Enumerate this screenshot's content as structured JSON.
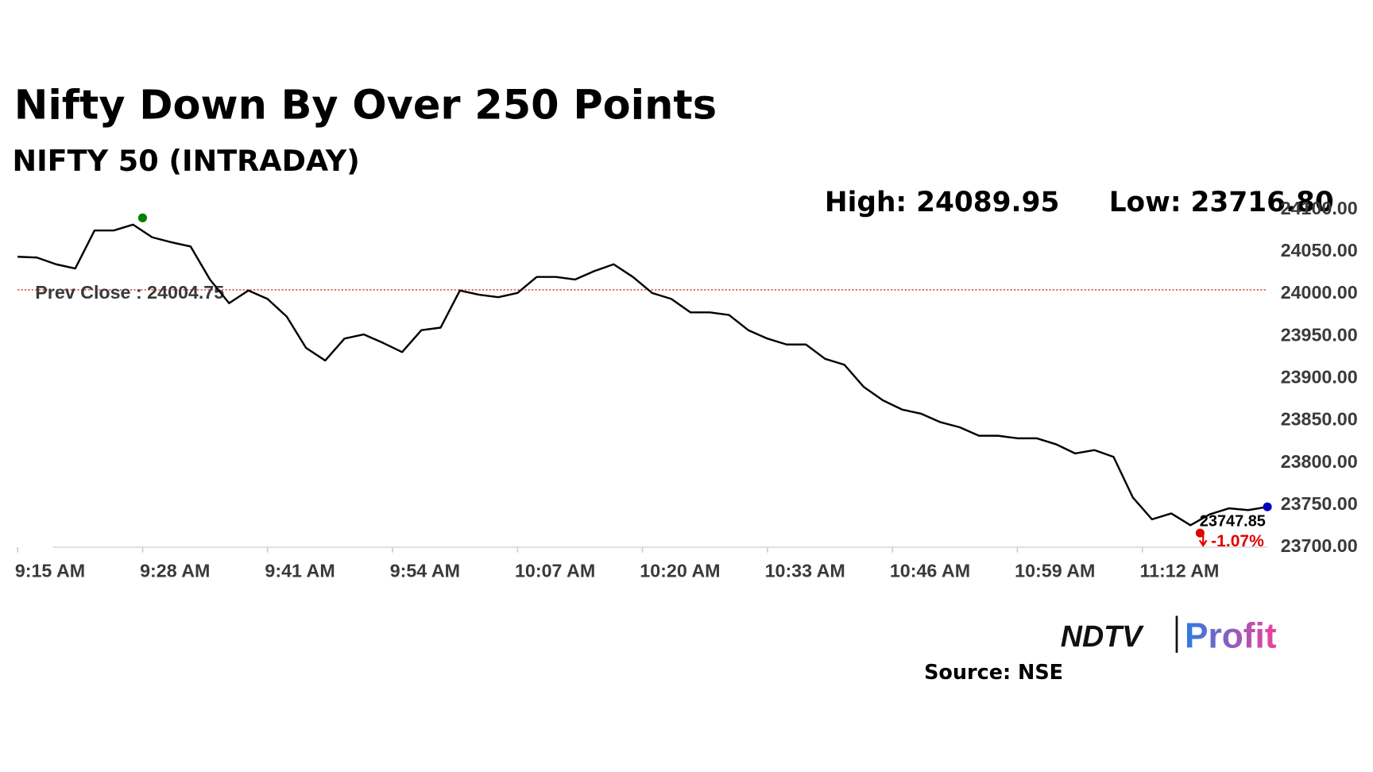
{
  "chart_data": {
    "type": "line",
    "title": "Nifty Down By Over 250 Points",
    "subtitle": "NIFTY 50 (INTRADAY)",
    "x": [
      "9:15 AM",
      "9:17 AM",
      "9:19 AM",
      "9:21 AM",
      "9:23 AM",
      "9:25 AM",
      "9:27 AM",
      "9:29 AM",
      "9:31 AM",
      "9:33 AM",
      "9:35 AM",
      "9:37 AM",
      "9:39 AM",
      "9:41 AM",
      "9:43 AM",
      "9:45 AM",
      "9:47 AM",
      "9:49 AM",
      "9:51 AM",
      "9:53 AM",
      "9:55 AM",
      "9:57 AM",
      "9:59 AM",
      "10:01 AM",
      "10:03 AM",
      "10:05 AM",
      "10:07 AM",
      "10:09 AM",
      "10:11 AM",
      "10:13 AM",
      "10:15 AM",
      "10:17 AM",
      "10:19 AM",
      "10:21 AM",
      "10:23 AM",
      "10:25 AM",
      "10:27 AM",
      "10:29 AM",
      "10:31 AM",
      "10:33 AM",
      "10:35 AM",
      "10:37 AM",
      "10:39 AM",
      "10:41 AM",
      "10:43 AM",
      "10:45 AM",
      "10:47 AM",
      "10:49 AM",
      "10:51 AM",
      "10:53 AM",
      "10:55 AM",
      "10:57 AM",
      "10:59 AM",
      "11:01 AM",
      "11:03 AM",
      "11:05 AM",
      "11:07 AM",
      "11:09 AM",
      "11:11 AM",
      "11:13 AM",
      "11:15 AM",
      "11:17 AM",
      "11:19 AM",
      "11:21 AM",
      "11:23 AM",
      "11:25 AM"
    ],
    "values": [
      24044,
      24043,
      24035,
      24030,
      24075,
      24075,
      24082,
      24067,
      24061,
      24056,
      24017,
      23989,
      24004,
      23994,
      23973,
      23936,
      23921,
      23947,
      23952,
      23942,
      23931,
      23957,
      23960,
      24004,
      23999,
      23996,
      24001,
      24020,
      24020,
      24017,
      24027,
      24035,
      24020,
      24001,
      23994,
      23978,
      23978,
      23975,
      23957,
      23947,
      23940,
      23940,
      23923,
      23916,
      23890,
      23874,
      23863,
      23858,
      23848,
      23842,
      23832,
      23832,
      23829,
      23829,
      23822,
      23811,
      23815,
      23807,
      23759,
      23733,
      23740,
      23726,
      23739,
      23746,
      23744,
      23747.85
    ],
    "color": "#000000",
    "ylim": [
      23700,
      24100
    ],
    "yticks": [
      {
        "value": 23700,
        "label": "23700.00"
      },
      {
        "value": 23750,
        "label": "23750.00"
      },
      {
        "value": 23800,
        "label": "23800.00"
      },
      {
        "value": 23850,
        "label": "23850.00"
      },
      {
        "value": 23900,
        "label": "23900.00"
      },
      {
        "value": 23950,
        "label": "23950.00"
      },
      {
        "value": 24000,
        "label": "24000.00"
      },
      {
        "value": 24050,
        "label": "24050.00"
      },
      {
        "value": 24100,
        "label": "24100.00"
      }
    ],
    "xticks": [
      "9:15 AM",
      "9:28 AM",
      "9:41 AM",
      "9:54 AM",
      "10:07 AM",
      "10:20 AM",
      "10:33 AM",
      "10:46 AM",
      "10:59 AM",
      "11:12 AM"
    ],
    "prev_close": {
      "label": "Prev Close :",
      "value": 24004.75,
      "color": "#cc0000"
    },
    "high": {
      "label": "High:",
      "value": 24089.95,
      "time": "9:28 AM",
      "color": "#008000"
    },
    "low": {
      "label": "Low:",
      "value": 23716.8,
      "value_label": "23716.80",
      "time": "11:18 AM",
      "color": "#e00000"
    },
    "last": {
      "value": 23747.85,
      "time": "11:25 AM",
      "color": "#0000c0"
    },
    "change": {
      "value": -1.07,
      "label": "-1.07%",
      "color": "#e00000"
    }
  },
  "branding": {
    "ndtv": "NDTV",
    "profit": "Profit"
  },
  "source": "Source: NSE"
}
